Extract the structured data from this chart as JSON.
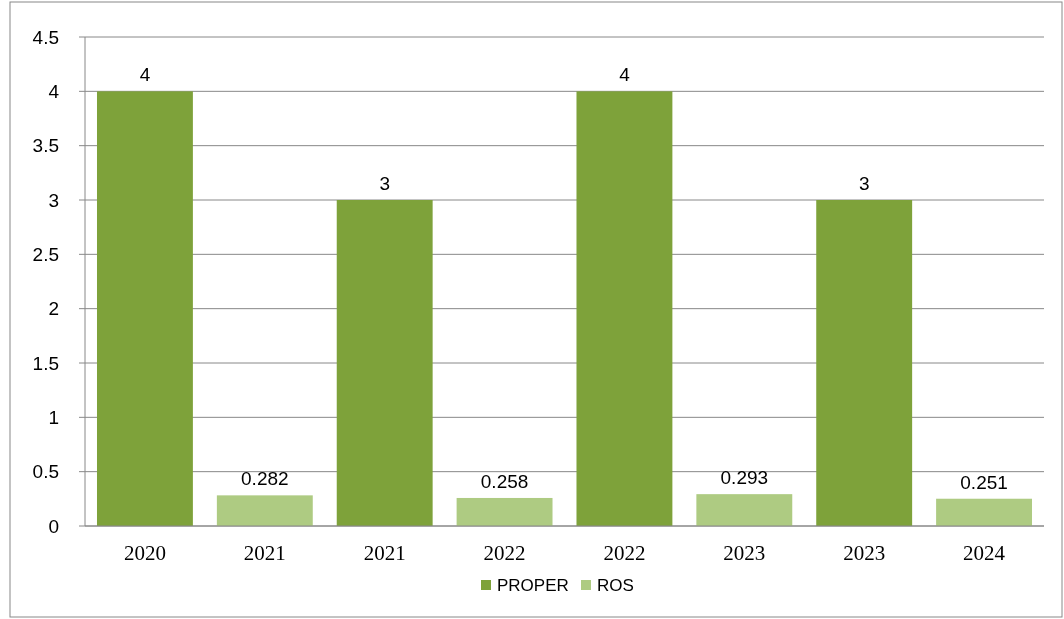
{
  "chart_data": {
    "type": "bar",
    "categories": [
      "2020",
      "2021",
      "2021",
      "2022",
      "2022",
      "2023",
      "2023",
      "2024"
    ],
    "series": [
      {
        "name": "PROPER",
        "color": "#7ea23a",
        "values": [
          4,
          null,
          3,
          null,
          4,
          null,
          3,
          null
        ]
      },
      {
        "name": "ROS",
        "color": "#aecb82",
        "values": [
          null,
          0.282,
          null,
          0.258,
          null,
          0.293,
          null,
          0.251
        ]
      }
    ],
    "ylim": [
      0,
      4.5
    ],
    "yticks": [
      0,
      0.5,
      1,
      1.5,
      2,
      2.5,
      3,
      3.5,
      4,
      4.5
    ],
    "grid": "y",
    "data_labels": true,
    "legend": "bottom"
  }
}
